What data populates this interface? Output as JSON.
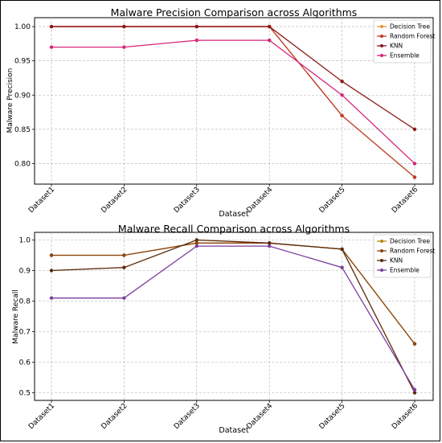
{
  "chart_data": [
    {
      "type": "line",
      "title": "Malware Precision Comparison across Algorithms",
      "xlabel": "Dataset",
      "ylabel": "Malware Precision",
      "categories": [
        "Dataset1",
        "Dataset2",
        "Dataset3",
        "Dataset4",
        "Dataset5",
        "Dataset6"
      ],
      "ylim": [
        0.77,
        1.013
      ],
      "yticks": [
        0.8,
        0.85,
        0.9,
        0.95,
        1.0
      ],
      "ytick_labels": [
        "0.80",
        "0.85",
        "0.90",
        "0.95",
        "1.00"
      ],
      "grid": true,
      "legend_position": "top-right",
      "series": [
        {
          "name": "Decision Tree",
          "color": "#e8942e",
          "values": [
            1.0,
            1.0,
            1.0,
            1.0,
            0.87,
            0.78
          ]
        },
        {
          "name": "Random Forest",
          "color": "#c0392b",
          "values": [
            1.0,
            1.0,
            1.0,
            1.0,
            0.87,
            0.78
          ]
        },
        {
          "name": "KNN",
          "color": "#8b1a1a",
          "values": [
            1.0,
            1.0,
            1.0,
            1.0,
            0.92,
            0.85
          ]
        },
        {
          "name": "Ensemble",
          "color": "#d6247a",
          "values": [
            0.97,
            0.97,
            0.98,
            0.98,
            0.9,
            0.8
          ]
        }
      ]
    },
    {
      "type": "line",
      "title": "Malware Recall Comparison across Algorithms",
      "xlabel": "Dataset",
      "ylabel": "Malware Recall",
      "categories": [
        "Dataset1",
        "Dataset2",
        "Dataset3",
        "Dataset4",
        "Dataset5",
        "Dataset6"
      ],
      "ylim": [
        0.475,
        1.025
      ],
      "yticks": [
        0.5,
        0.6,
        0.7,
        0.8,
        0.9,
        1.0
      ],
      "ytick_labels": [
        "0.5",
        "0.6",
        "0.7",
        "0.8",
        "0.9",
        "1.0"
      ],
      "grid": true,
      "legend_position": "top-right",
      "series": [
        {
          "name": "Decision Tree",
          "color": "#b8860b",
          "values": [
            0.95,
            0.95,
            0.99,
            0.99,
            0.97,
            0.66
          ]
        },
        {
          "name": "Random Forest",
          "color": "#8b4513",
          "values": [
            0.95,
            0.95,
            0.99,
            0.99,
            0.97,
            0.66
          ]
        },
        {
          "name": "KNN",
          "color": "#5c2a0a",
          "values": [
            0.9,
            0.91,
            1.0,
            0.99,
            0.97,
            0.5
          ]
        },
        {
          "name": "Ensemble",
          "color": "#7b3f9e",
          "values": [
            0.81,
            0.81,
            0.98,
            0.98,
            0.91,
            0.51
          ]
        }
      ]
    }
  ]
}
